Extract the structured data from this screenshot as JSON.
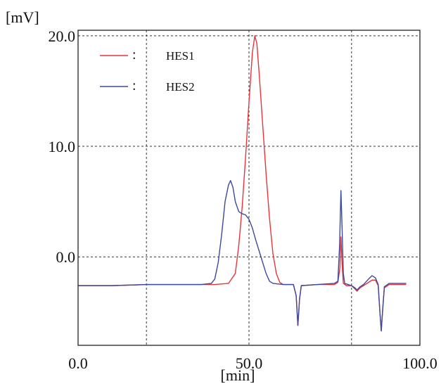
{
  "chart_data": {
    "type": "line",
    "title": "",
    "xlabel": "[min]",
    "ylabel": "[mV]",
    "xlim": [
      0,
      100
    ],
    "ylim": [
      -8.0,
      20.5
    ],
    "x_ticks": [
      0,
      50,
      100
    ],
    "x_tick_labels": [
      "0.0",
      "50.0",
      "100.0"
    ],
    "x_gridlines": [
      20.0,
      50.0,
      80.0
    ],
    "y_ticks": [
      0,
      10,
      20
    ],
    "y_tick_labels": [
      "0.0",
      "10.0",
      "20.0"
    ],
    "y_gridlines": [
      0,
      10,
      20
    ],
    "grid": true,
    "legend_position": "top-left",
    "series": [
      {
        "name": "HES1",
        "color": "#e8343c",
        "points": [
          [
            0,
            -2.6
          ],
          [
            10,
            -2.6
          ],
          [
            20,
            -2.5
          ],
          [
            30,
            -2.5
          ],
          [
            40,
            -2.5
          ],
          [
            44,
            -2.4
          ],
          [
            46,
            -1.5
          ],
          [
            47,
            1.0
          ],
          [
            48,
            4.5
          ],
          [
            49,
            9.0
          ],
          [
            50,
            14.0
          ],
          [
            51,
            18.5
          ],
          [
            51.7,
            20.0
          ],
          [
            52.3,
            19.3
          ],
          [
            53,
            16.5
          ],
          [
            54,
            12.0
          ],
          [
            55,
            7.5
          ],
          [
            56,
            3.5
          ],
          [
            57,
            0.3
          ],
          [
            58,
            -1.5
          ],
          [
            59,
            -2.3
          ],
          [
            60,
            -2.5
          ],
          [
            63,
            -2.5
          ],
          [
            63.8,
            -3.5
          ],
          [
            64.3,
            -6.2
          ],
          [
            64.8,
            -3.8
          ],
          [
            65.3,
            -2.6
          ],
          [
            70,
            -2.5
          ],
          [
            75,
            -2.5
          ],
          [
            76,
            -2.3
          ],
          [
            76.6,
            -1.0
          ],
          [
            76.9,
            1.8
          ],
          [
            77.2,
            -0.5
          ],
          [
            77.6,
            -2.4
          ],
          [
            78.5,
            -2.6
          ],
          [
            80,
            -2.6
          ],
          [
            81,
            -2.9
          ],
          [
            81.6,
            -3.1
          ],
          [
            82.5,
            -2.8
          ],
          [
            83.5,
            -2.6
          ],
          [
            85,
            -2.3
          ],
          [
            86,
            -2.1
          ],
          [
            87,
            -2.1
          ],
          [
            87.8,
            -2.6
          ],
          [
            88.3,
            -5.0
          ],
          [
            88.7,
            -6.7
          ],
          [
            89.1,
            -4.8
          ],
          [
            89.6,
            -2.8
          ],
          [
            91,
            -2.5
          ],
          [
            94,
            -2.5
          ],
          [
            96,
            -2.5
          ]
        ]
      },
      {
        "name": "HES2",
        "color": "#3b4a9c",
        "points": [
          [
            0,
            -2.6
          ],
          [
            10,
            -2.6
          ],
          [
            20,
            -2.5
          ],
          [
            30,
            -2.5
          ],
          [
            36,
            -2.5
          ],
          [
            39,
            -2.4
          ],
          [
            40,
            -2.0
          ],
          [
            41,
            -0.5
          ],
          [
            42,
            2.0
          ],
          [
            43,
            5.0
          ],
          [
            44,
            6.5
          ],
          [
            44.6,
            6.9
          ],
          [
            45.3,
            6.3
          ],
          [
            46,
            5.0
          ],
          [
            47,
            4.1
          ],
          [
            48,
            3.9
          ],
          [
            49,
            3.8
          ],
          [
            50,
            3.4
          ],
          [
            51,
            2.6
          ],
          [
            52,
            1.5
          ],
          [
            53,
            0.5
          ],
          [
            54,
            -0.5
          ],
          [
            55,
            -1.5
          ],
          [
            56,
            -2.2
          ],
          [
            57,
            -2.4
          ],
          [
            60,
            -2.5
          ],
          [
            63,
            -2.5
          ],
          [
            63.8,
            -3.5
          ],
          [
            64.3,
            -6.2
          ],
          [
            64.8,
            -3.8
          ],
          [
            65.3,
            -2.6
          ],
          [
            70,
            -2.5
          ],
          [
            75,
            -2.4
          ],
          [
            76,
            -2.2
          ],
          [
            76.5,
            1.0
          ],
          [
            76.9,
            6.0
          ],
          [
            77.2,
            3.0
          ],
          [
            77.6,
            -1.5
          ],
          [
            78,
            -2.4
          ],
          [
            79,
            -2.5
          ],
          [
            80,
            -2.6
          ],
          [
            81,
            -2.8
          ],
          [
            81.6,
            -3.0
          ],
          [
            82.5,
            -2.7
          ],
          [
            83.5,
            -2.5
          ],
          [
            85,
            -2.0
          ],
          [
            86,
            -1.7
          ],
          [
            87,
            -1.9
          ],
          [
            87.8,
            -2.5
          ],
          [
            88.3,
            -5.0
          ],
          [
            88.7,
            -6.7
          ],
          [
            89.1,
            -4.8
          ],
          [
            89.6,
            -2.7
          ],
          [
            91,
            -2.4
          ],
          [
            94,
            -2.4
          ],
          [
            96,
            -2.4
          ]
        ]
      }
    ]
  }
}
